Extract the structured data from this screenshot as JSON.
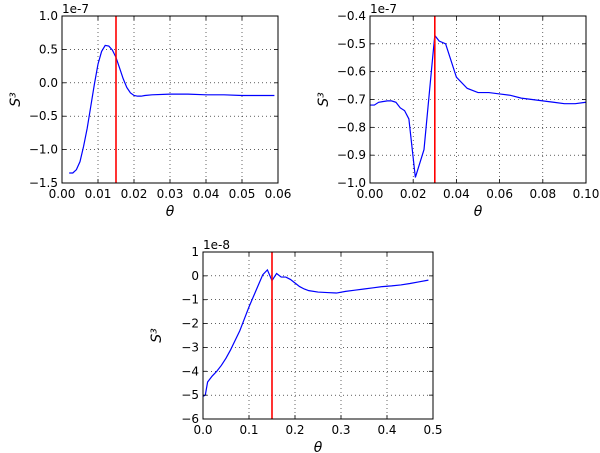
{
  "chart_data": [
    {
      "type": "line",
      "xlabel": "θ",
      "ylabel": "S³",
      "offset_text": "1e-7",
      "xlim": [
        0.0,
        0.06
      ],
      "ylim": [
        -1.5,
        1.0
      ],
      "xticks": [
        0.0,
        0.01,
        0.02,
        0.03,
        0.04,
        0.05,
        0.06
      ],
      "xtick_labels": [
        "0.00",
        "0.01",
        "0.02",
        "0.03",
        "0.04",
        "0.05",
        "0.06"
      ],
      "yticks": [
        -1.5,
        -1.0,
        -0.5,
        0.0,
        0.5,
        1.0
      ],
      "ytick_labels": [
        "−1.5",
        "−1.0",
        "−0.5",
        "0.0",
        "0.5",
        "1.0"
      ],
      "grid": true,
      "vline": {
        "x": 0.015,
        "color": "#ff0000"
      },
      "series": [
        {
          "color": "#0000ff",
          "x": [
            0.002,
            0.003,
            0.004,
            0.005,
            0.006,
            0.007,
            0.008,
            0.009,
            0.01,
            0.011,
            0.012,
            0.013,
            0.014,
            0.015,
            0.016,
            0.017,
            0.018,
            0.019,
            0.02,
            0.021,
            0.022,
            0.023,
            0.025,
            0.03,
            0.035,
            0.04,
            0.045,
            0.05,
            0.055,
            0.059
          ],
          "y": [
            -1.35,
            -1.35,
            -1.3,
            -1.18,
            -0.95,
            -0.68,
            -0.35,
            -0.02,
            0.28,
            0.47,
            0.56,
            0.55,
            0.49,
            0.38,
            0.22,
            0.06,
            -0.07,
            -0.15,
            -0.19,
            -0.2,
            -0.2,
            -0.19,
            -0.18,
            -0.17,
            -0.17,
            -0.18,
            -0.18,
            -0.19,
            -0.19,
            -0.19
          ]
        }
      ]
    },
    {
      "type": "line",
      "xlabel": "θ",
      "ylabel": "S³",
      "offset_text": "1e-7",
      "xlim": [
        0.0,
        0.1
      ],
      "ylim": [
        -1.0,
        -0.4
      ],
      "xticks": [
        0.0,
        0.02,
        0.04,
        0.06,
        0.08,
        0.1
      ],
      "xtick_labels": [
        "0.00",
        "0.02",
        "0.04",
        "0.06",
        "0.08",
        "0.10"
      ],
      "yticks": [
        -1.0,
        -0.9,
        -0.8,
        -0.7,
        -0.6,
        -0.5,
        -0.4
      ],
      "ytick_labels": [
        "−1.0",
        "−0.9",
        "−0.8",
        "−0.7",
        "−0.6",
        "−0.5",
        "−0.4"
      ],
      "grid": true,
      "vline": {
        "x": 0.03,
        "color": "#ff0000"
      },
      "series": [
        {
          "color": "#0000ff",
          "x": [
            0.0,
            0.002,
            0.004,
            0.008,
            0.01,
            0.012,
            0.014,
            0.016,
            0.018,
            0.021,
            0.025,
            0.029,
            0.03,
            0.032,
            0.035,
            0.04,
            0.045,
            0.05,
            0.055,
            0.06,
            0.065,
            0.07,
            0.075,
            0.08,
            0.085,
            0.09,
            0.095,
            0.1
          ],
          "y": [
            -0.72,
            -0.72,
            -0.71,
            -0.705,
            -0.705,
            -0.71,
            -0.73,
            -0.74,
            -0.77,
            -0.98,
            -0.88,
            -0.55,
            -0.47,
            -0.49,
            -0.5,
            -0.62,
            -0.66,
            -0.675,
            -0.675,
            -0.68,
            -0.685,
            -0.695,
            -0.7,
            -0.705,
            -0.71,
            -0.715,
            -0.715,
            -0.71
          ]
        }
      ]
    },
    {
      "type": "line",
      "xlabel": "θ",
      "ylabel": "S³",
      "offset_text": "1e-8",
      "xlim": [
        0.0,
        0.5
      ],
      "ylim": [
        -6,
        1
      ],
      "xticks": [
        0.0,
        0.1,
        0.2,
        0.3,
        0.4,
        0.5
      ],
      "xtick_labels": [
        "0.0",
        "0.1",
        "0.2",
        "0.3",
        "0.4",
        "0.5"
      ],
      "yticks": [
        -6,
        -5,
        -4,
        -3,
        -2,
        -1,
        0,
        1
      ],
      "ytick_labels": [
        "−6",
        "−5",
        "−4",
        "−3",
        "−2",
        "−1",
        "0",
        "1"
      ],
      "grid": true,
      "vline": {
        "x": 0.15,
        "color": "#ff0000"
      },
      "series": [
        {
          "color": "#0000ff",
          "x": [
            0.0,
            0.005,
            0.01,
            0.02,
            0.03,
            0.04,
            0.05,
            0.06,
            0.07,
            0.08,
            0.09,
            0.1,
            0.11,
            0.12,
            0.13,
            0.14,
            0.15,
            0.16,
            0.17,
            0.18,
            0.19,
            0.2,
            0.21,
            0.22,
            0.23,
            0.25,
            0.27,
            0.29,
            0.31,
            0.33,
            0.35,
            0.37,
            0.39,
            0.41,
            0.43,
            0.45,
            0.47,
            0.49
          ],
          "y": [
            -5.05,
            -5.0,
            -4.45,
            -4.2,
            -4.0,
            -3.75,
            -3.45,
            -3.1,
            -2.7,
            -2.3,
            -1.8,
            -1.3,
            -0.85,
            -0.4,
            0.05,
            0.25,
            -0.2,
            0.1,
            -0.05,
            -0.05,
            -0.15,
            -0.3,
            -0.45,
            -0.55,
            -0.62,
            -0.68,
            -0.7,
            -0.72,
            -0.65,
            -0.6,
            -0.55,
            -0.5,
            -0.45,
            -0.42,
            -0.38,
            -0.32,
            -0.25,
            -0.18
          ]
        }
      ]
    }
  ]
}
